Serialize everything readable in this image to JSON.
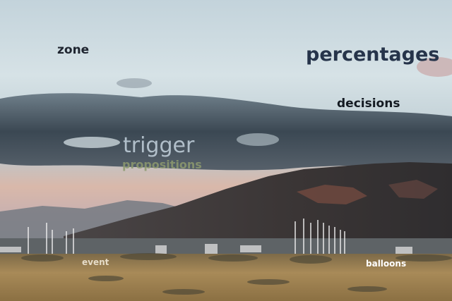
{
  "scene": {
    "description_colors": {
      "sky_top": "#c9d7de",
      "cloud_band": "#3d4a55",
      "sunset_glow": "#d8b3a3",
      "mountain": "#3a3838",
      "mountain_lit": "#8a5a4c",
      "grass": "#a58a5a"
    }
  },
  "labels": {
    "zone": "zone",
    "percentages": "percentages",
    "decisions": "decisions",
    "trigger": "trigger",
    "propositions": "propositions",
    "event": "event",
    "balloons": "balloons"
  }
}
